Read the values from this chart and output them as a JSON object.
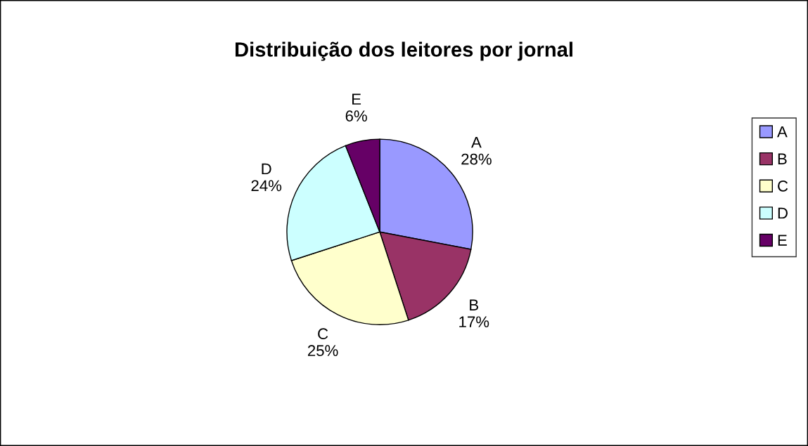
{
  "chart_data": {
    "type": "pie",
    "title": "Distribuição dos leitores por jornal",
    "categories": [
      "A",
      "B",
      "C",
      "D",
      "E"
    ],
    "values": [
      28,
      17,
      25,
      24,
      6
    ],
    "colors": [
      "#9999ff",
      "#993366",
      "#ffffcc",
      "#ccffff",
      "#660066"
    ],
    "value_labels": [
      "28%",
      "17%",
      "25%",
      "24%",
      "6%"
    ],
    "legend": "right"
  }
}
